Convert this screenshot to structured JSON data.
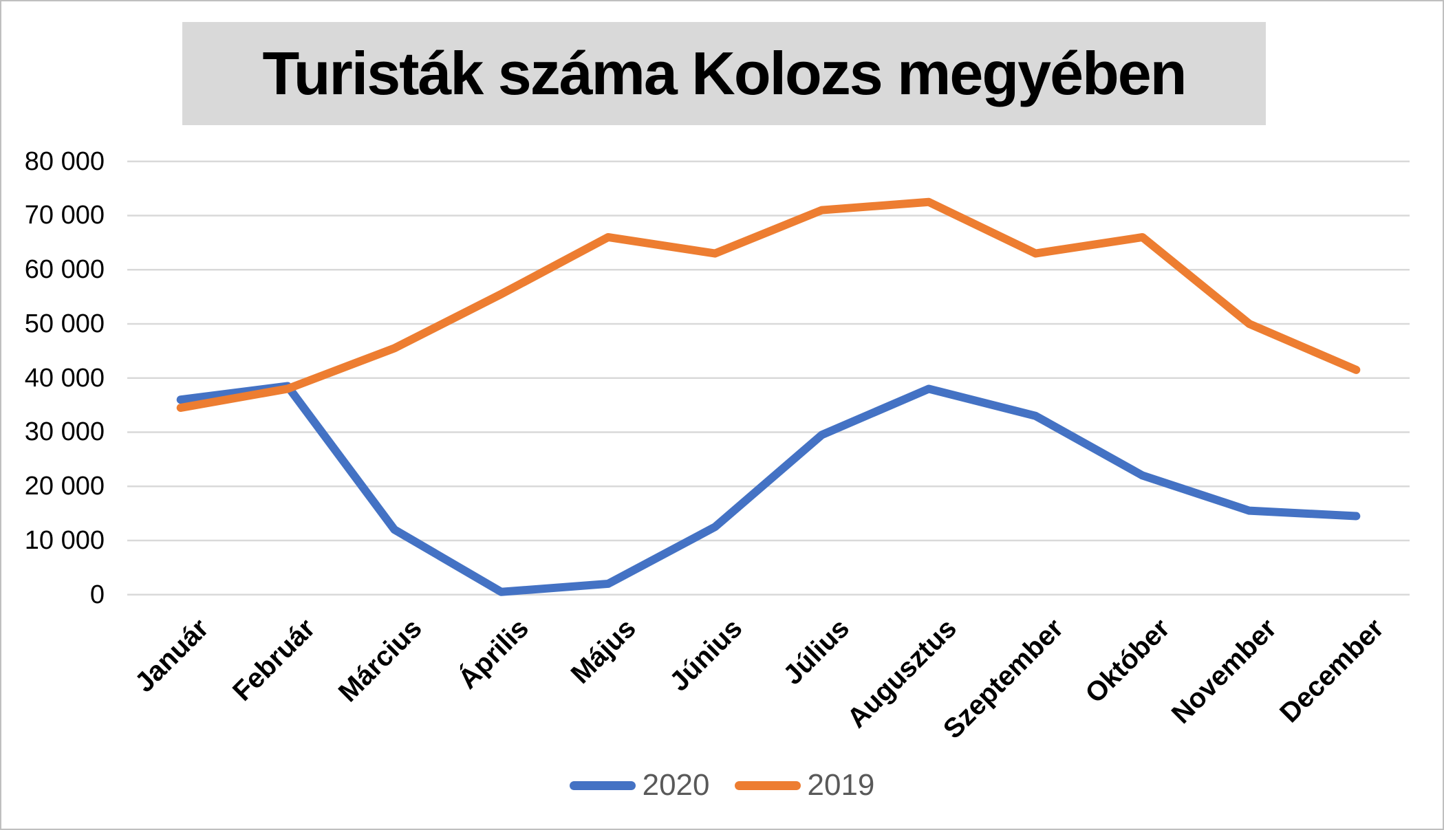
{
  "title": "Turisták száma Kolozs megyében",
  "colors": {
    "series_2020": "#4472C4",
    "series_2019": "#ED7D31",
    "gridline": "#D9D9D9",
    "title_band": "#D9D9D9",
    "axis_text": "#000000",
    "legend_text": "#595959"
  },
  "y_axis": {
    "tick_labels": [
      "80 000",
      "70 000",
      "60 000",
      "50 000",
      "40 000",
      "30 000",
      "20 000",
      "10 000",
      "0"
    ],
    "min": 0,
    "max": 80000,
    "step": 10000
  },
  "chart_data": {
    "type": "line",
    "title": "Turisták száma Kolozs megyében",
    "categories": [
      "Január",
      "Február",
      "Március",
      "Április",
      "Május",
      "Június",
      "Július",
      "Augusztus",
      "Szeptember",
      "Október",
      "November",
      "December"
    ],
    "series": [
      {
        "name": "2020",
        "color": "#4472C4",
        "values": [
          36000,
          38500,
          12000,
          500,
          2000,
          12500,
          29500,
          38000,
          33000,
          22000,
          15500,
          14500
        ]
      },
      {
        "name": "2019",
        "color": "#ED7D31",
        "values": [
          34500,
          38000,
          45500,
          55500,
          66000,
          63000,
          71000,
          72500,
          63000,
          66000,
          50000,
          41500
        ]
      }
    ],
    "xlabel": "",
    "ylabel": "",
    "ylim": [
      0,
      80000
    ],
    "grid": true,
    "legend_position": "bottom"
  },
  "legend": {
    "items": [
      {
        "label": "2020",
        "color": "#4472C4"
      },
      {
        "label": "2019",
        "color": "#ED7D31"
      }
    ]
  }
}
